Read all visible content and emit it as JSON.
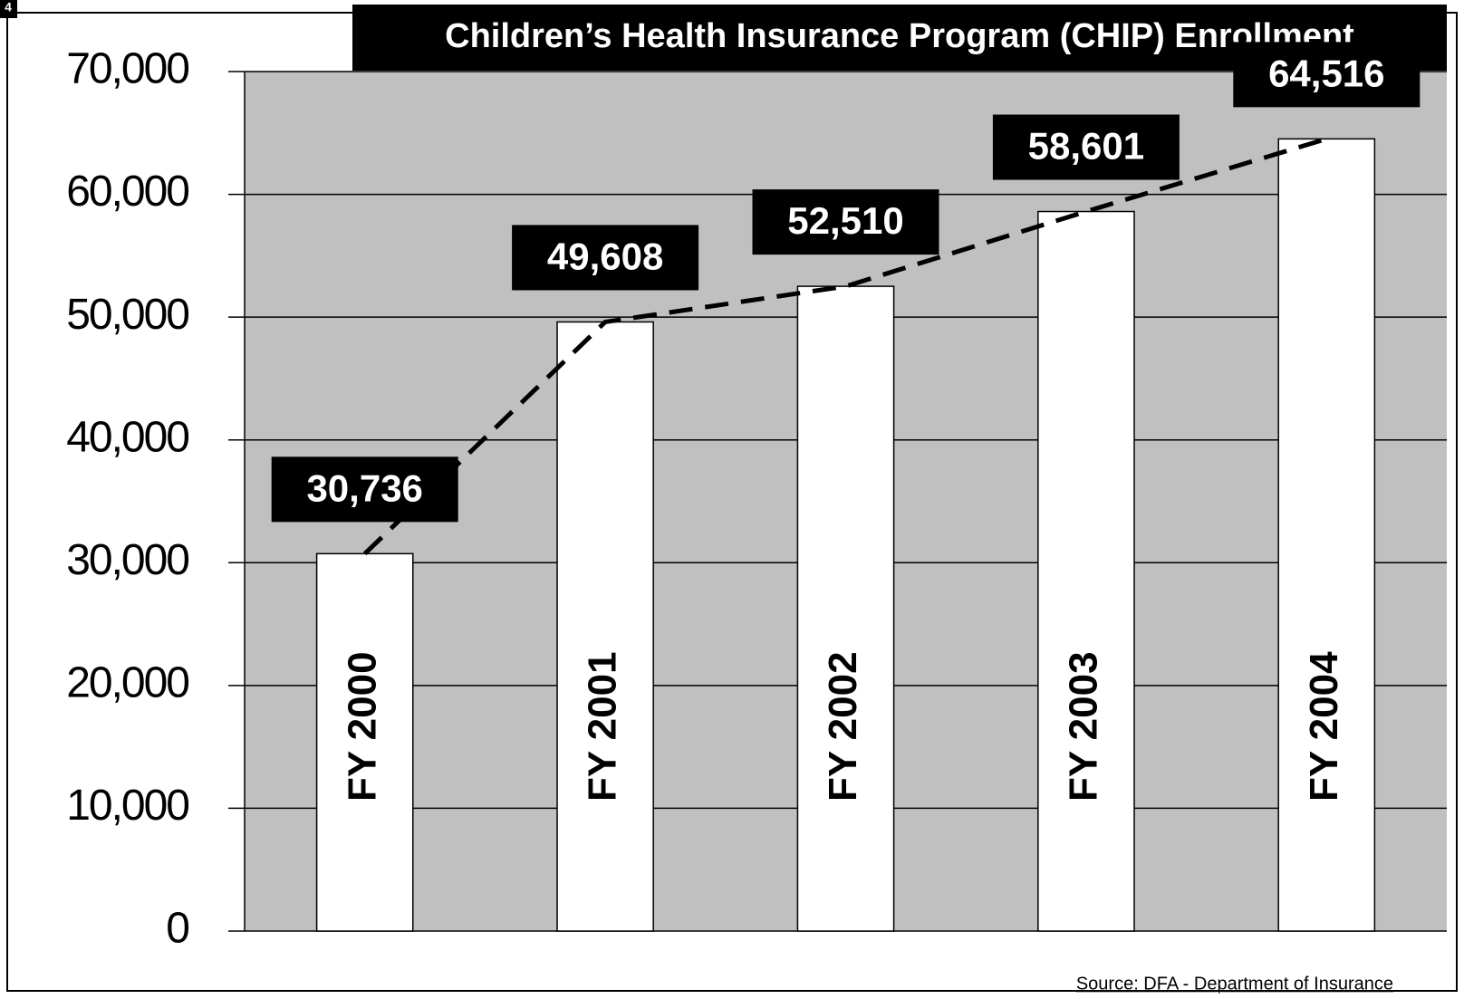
{
  "page_number": "4",
  "chart_data": {
    "type": "bar",
    "title": "Children’s Health Insurance Program (CHIP) Enrollment",
    "source": "Source: DFA - Department of Insurance",
    "categories": [
      "FY 2000",
      "FY 2001",
      "FY 2002",
      "FY 2003",
      "FY 2004"
    ],
    "values": [
      30736,
      49608,
      52510,
      58601,
      64516
    ],
    "value_labels": [
      "30,736",
      "49,608",
      "52,510",
      "58,601",
      "64,516"
    ],
    "color": "#ffffff",
    "plot_background": "#c0c0c0",
    "trend_line": true,
    "trend_line_style": "dashed",
    "ylim": [
      0,
      70000
    ],
    "yticks": [
      0,
      {
        "value": 10000,
        "label": "10,000"
      },
      {
        "value": 20000,
        "label": "20,000"
      },
      {
        "value": 30000,
        "label": "30,000"
      },
      {
        "value": 40000,
        "label": "40,000"
      },
      {
        "value": 50000,
        "label": "50,000"
      },
      {
        "value": 60000,
        "label": "60,000"
      },
      {
        "value": 70000,
        "label": "70,000"
      }
    ],
    "grid": true
  }
}
